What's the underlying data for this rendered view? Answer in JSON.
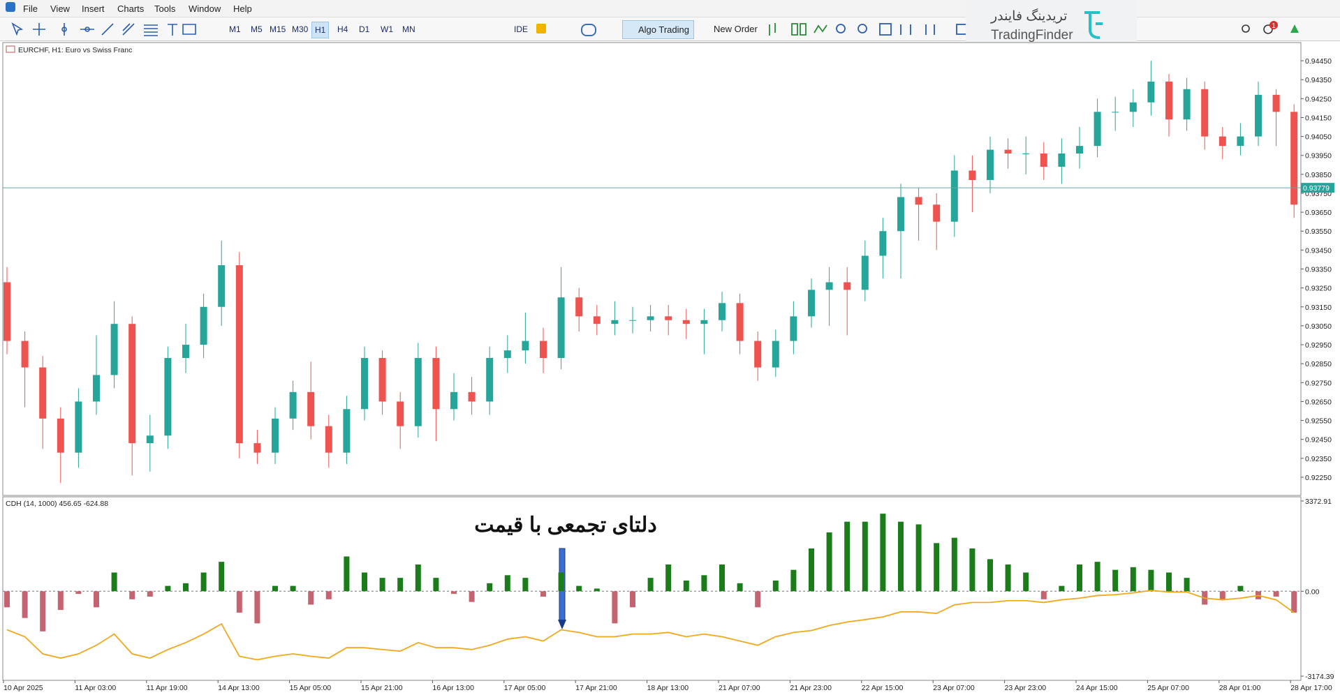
{
  "menu": [
    "File",
    "View",
    "Insert",
    "Charts",
    "Tools",
    "Window",
    "Help"
  ],
  "toolbar": {
    "timeframes": [
      "M1",
      "M5",
      "M15",
      "M30",
      "H1",
      "H4",
      "D1",
      "W1",
      "MN"
    ],
    "ide": "IDE",
    "algo_trading": "Algo Trading",
    "new_order": "New Order",
    "notifications": 1
  },
  "logo": {
    "fa": "تریدینگ فایندر",
    "en": "TradingFinder"
  },
  "chart_data": [
    {
      "type": "candlestick",
      "title": "EURCHF, H1: Euro vs Swiss Franc",
      "up_color": "#26a69a",
      "down_color": "#ef5350",
      "open": [
        0.9328,
        0.9297,
        0.9283,
        0.9256,
        0.9238,
        0.9265,
        0.9279,
        0.9306,
        0.9243,
        0.9247,
        0.9288,
        0.9295,
        0.9315,
        0.9337,
        0.9243,
        0.9238,
        0.9256,
        0.927,
        0.9252,
        0.9238,
        0.9261,
        0.9288,
        0.9265,
        0.9252,
        0.9288,
        0.9261,
        0.927,
        0.9265,
        0.9288,
        0.9292,
        0.9297,
        0.9288,
        0.932,
        0.931,
        0.9306,
        0.9308,
        0.9308,
        0.931,
        0.9308,
        0.9306,
        0.9308,
        0.9317,
        0.9297,
        0.9283,
        0.9297,
        0.931,
        0.9324,
        0.9328,
        0.9324,
        0.9342,
        0.9355,
        0.9373,
        0.9369,
        0.936,
        0.9387,
        0.9382,
        0.9398,
        0.9396,
        0.9396,
        0.9389,
        0.9396,
        0.94,
        0.9418,
        0.9418,
        0.9423,
        0.9434,
        0.9414,
        0.943,
        0.9405,
        0.94,
        0.9405,
        0.9427,
        0.9418
      ],
      "high": [
        0.9336,
        0.9302,
        0.9289,
        0.9262,
        0.9272,
        0.93,
        0.9318,
        0.931,
        0.9258,
        0.9294,
        0.9306,
        0.9322,
        0.935,
        0.9344,
        0.925,
        0.9262,
        0.9276,
        0.9286,
        0.9258,
        0.9268,
        0.9294,
        0.9292,
        0.927,
        0.9296,
        0.9294,
        0.928,
        0.9278,
        0.9294,
        0.93,
        0.9312,
        0.9304,
        0.9336,
        0.9325,
        0.9316,
        0.9318,
        0.9315,
        0.9316,
        0.9316,
        0.9314,
        0.9314,
        0.9323,
        0.9322,
        0.9302,
        0.9303,
        0.9318,
        0.933,
        0.9336,
        0.9336,
        0.935,
        0.9362,
        0.938,
        0.9378,
        0.9375,
        0.9395,
        0.9395,
        0.9405,
        0.9404,
        0.9405,
        0.9402,
        0.9404,
        0.941,
        0.9425,
        0.9426,
        0.943,
        0.9445,
        0.9438,
        0.9436,
        0.9434,
        0.941,
        0.9412,
        0.9434,
        0.943,
        0.9422
      ],
      "low": [
        0.929,
        0.9262,
        0.924,
        0.9222,
        0.923,
        0.9258,
        0.9272,
        0.9226,
        0.9228,
        0.924,
        0.928,
        0.9288,
        0.9305,
        0.9235,
        0.9232,
        0.9232,
        0.925,
        0.9245,
        0.923,
        0.9232,
        0.9255,
        0.9258,
        0.924,
        0.9246,
        0.9244,
        0.9255,
        0.9258,
        0.9258,
        0.928,
        0.9285,
        0.928,
        0.9282,
        0.9302,
        0.93,
        0.93,
        0.9301,
        0.9302,
        0.93,
        0.9298,
        0.929,
        0.9302,
        0.929,
        0.9276,
        0.9278,
        0.929,
        0.9304,
        0.9305,
        0.93,
        0.9318,
        0.933,
        0.933,
        0.935,
        0.9345,
        0.9352,
        0.9365,
        0.9375,
        0.9388,
        0.9385,
        0.9382,
        0.938,
        0.9388,
        0.9394,
        0.9408,
        0.941,
        0.9416,
        0.9405,
        0.9408,
        0.9398,
        0.9393,
        0.9395,
        0.94,
        0.94,
        0.9362
      ],
      "close": [
        0.9297,
        0.9283,
        0.9256,
        0.9238,
        0.9265,
        0.9279,
        0.9306,
        0.9243,
        0.9247,
        0.9288,
        0.9295,
        0.9315,
        0.9337,
        0.9243,
        0.9238,
        0.9256,
        0.927,
        0.9252,
        0.9238,
        0.9261,
        0.9288,
        0.9265,
        0.9252,
        0.9288,
        0.9261,
        0.927,
        0.9265,
        0.9288,
        0.9292,
        0.9297,
        0.9288,
        0.932,
        0.931,
        0.9306,
        0.9308,
        0.9308,
        0.931,
        0.9308,
        0.9306,
        0.9308,
        0.9317,
        0.9297,
        0.9283,
        0.9297,
        0.931,
        0.9324,
        0.9328,
        0.9324,
        0.9342,
        0.9355,
        0.9373,
        0.9369,
        0.936,
        0.9387,
        0.9382,
        0.9398,
        0.9396,
        0.9396,
        0.9389,
        0.9396,
        0.94,
        0.9418,
        0.9418,
        0.9423,
        0.9434,
        0.9414,
        0.943,
        0.9405,
        0.94,
        0.9405,
        0.9427,
        0.9418,
        0.9369
      ],
      "ylim": [
        0.92154,
        0.94546
      ],
      "yticks": [
        {
          "value": 0.9445,
          "label": "0.94450"
        },
        {
          "value": 0.9435,
          "label": "0.94350"
        },
        {
          "value": 0.9425,
          "label": "0.94250"
        },
        {
          "value": 0.9415,
          "label": "0.94150"
        },
        {
          "value": 0.9405,
          "label": "0.94050"
        },
        {
          "value": 0.9395,
          "label": "0.93950"
        },
        {
          "value": 0.9385,
          "label": "0.93850"
        },
        {
          "value": 0.9375,
          "label": "0.93750"
        },
        {
          "value": 0.9365,
          "label": "0.93650"
        },
        {
          "value": 0.9355,
          "label": "0.93550"
        },
        {
          "value": 0.9345,
          "label": "0.93450"
        },
        {
          "value": 0.9335,
          "label": "0.93350"
        },
        {
          "value": 0.9325,
          "label": "0.93250"
        },
        {
          "value": 0.9315,
          "label": "0.93150"
        },
        {
          "value": 0.9305,
          "label": "0.93050"
        },
        {
          "value": 0.9295,
          "label": "0.92950"
        },
        {
          "value": 0.9285,
          "label": "0.92850"
        },
        {
          "value": 0.9275,
          "label": "0.92750"
        },
        {
          "value": 0.9265,
          "label": "0.92650"
        },
        {
          "value": 0.9255,
          "label": "0.92550"
        },
        {
          "value": 0.9245,
          "label": "0.92450"
        },
        {
          "value": 0.9235,
          "label": "0.92350"
        },
        {
          "value": 0.9225,
          "label": "0.92250"
        }
      ],
      "price_line": {
        "value": 0.93779,
        "color": "#5fa8a0"
      }
    },
    {
      "type": "bar",
      "title": "CDH (14, 1000) 456.65 -624.88",
      "annotation": "دلتای تجمعی با قیمت",
      "categories": [
        "10 Apr 2025",
        null,
        null,
        null,
        "11 Apr 03:00",
        null,
        null,
        null,
        "11 Apr 19:00",
        null,
        null,
        null,
        "14 Apr 13:00",
        null,
        null,
        null,
        "15 Apr 05:00",
        null,
        null,
        null,
        "15 Apr 21:00",
        null,
        null,
        null,
        "16 Apr 13:00",
        null,
        null,
        null,
        "17 Apr 05:00",
        null,
        null,
        null,
        "17 Apr 21:00",
        null,
        null,
        null,
        "18 Apr 13:00",
        null,
        null,
        null,
        "21 Apr 07:00",
        null,
        null,
        null,
        "21 Apr 23:00",
        null,
        null,
        null,
        "22 Apr 15:00",
        null,
        null,
        null,
        "23 Apr 07:00",
        null,
        null,
        null,
        "23 Apr 23:00",
        null,
        null,
        null,
        "24 Apr 15:00",
        null,
        null,
        null,
        "25 Apr 07:00",
        null,
        null,
        null,
        "28 Apr 01:00",
        null,
        null,
        null,
        "28 Apr 17:00"
      ],
      "values": [
        -600,
        -1000,
        -1500,
        -700,
        -100,
        -600,
        700,
        -300,
        -200,
        200,
        300,
        700,
        1100,
        -800,
        -1200,
        200,
        200,
        -500,
        -300,
        1300,
        700,
        500,
        500,
        1000,
        500,
        -100,
        -400,
        300,
        600,
        500,
        -200,
        700,
        200,
        100,
        -1200,
        -600,
        500,
        1000,
        400,
        600,
        1000,
        300,
        -600,
        400,
        800,
        1600,
        2200,
        2600,
        2600,
        2900,
        2600,
        2500,
        1800,
        2000,
        1600,
        1200,
        1000,
        700,
        -300,
        200,
        1000,
        1100,
        800,
        900,
        800,
        700,
        500,
        -500,
        -300,
        200,
        -300,
        -200,
        -800
      ],
      "positive_color": "#1a7d1a",
      "negative_color": "#c46470",
      "line": {
        "color": "#f0a81c",
        "values": [
          -1440,
          -1700,
          -2340,
          -2500,
          -2340,
          -2020,
          -1600,
          -2340,
          -2500,
          -2180,
          -1920,
          -1600,
          -1220,
          -2430,
          -2560,
          -2430,
          -2340,
          -2430,
          -2500,
          -2110,
          -2110,
          -2180,
          -2240,
          -1920,
          -2110,
          -2110,
          -2180,
          -2020,
          -1790,
          -1700,
          -1860,
          -1440,
          -1540,
          -1700,
          -1700,
          -1600,
          -1600,
          -1540,
          -1700,
          -1600,
          -1700,
          -1860,
          -2020,
          -1700,
          -1540,
          -1470,
          -1280,
          -1150,
          -1060,
          -960,
          -770,
          -770,
          -830,
          -510,
          -420,
          -420,
          -350,
          -350,
          -420,
          -320,
          -260,
          -160,
          -130,
          -60,
          30,
          -30,
          -30,
          -260,
          -320,
          -260,
          -160,
          -320,
          -800
        ]
      },
      "ylim": [
        -3174.39,
        3372.91
      ],
      "yticks": [
        3372.91,
        {
          "value": 0,
          "label": "0.00"
        },
        -3174.39
      ]
    }
  ]
}
